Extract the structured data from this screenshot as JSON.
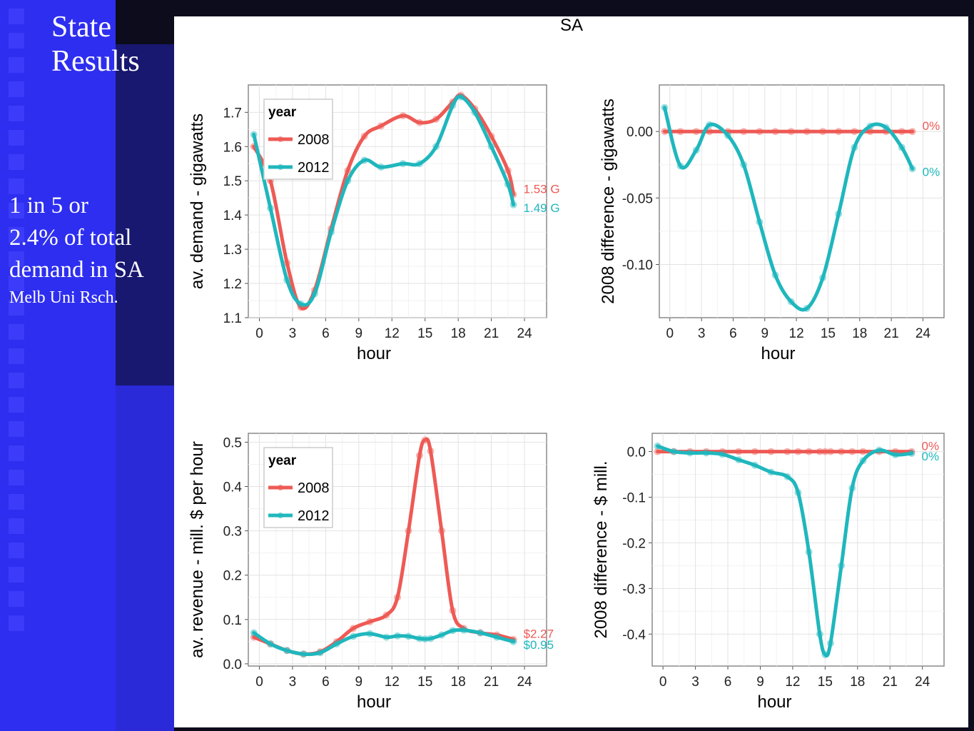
{
  "slide": {
    "title_lines": [
      "State",
      "Results"
    ],
    "note_lines": [
      "1 in 5 or",
      "2.4% of total",
      "demand in SA"
    ],
    "note_small": "Melb Uni Rsch."
  },
  "colors": {
    "y2008": "#ee5a55",
    "y2012": "#1fb7bd",
    "background_left": "#2e2ef0",
    "background_dark": "#0c0c1c"
  },
  "chart_title": "SA",
  "chart_data": [
    {
      "type": "scatter",
      "title": "SA",
      "xlabel": "hour",
      "ylabel": "av. demand - gigawatts",
      "xlim": [
        -1,
        26
      ],
      "ylim": [
        1.1,
        1.78
      ],
      "xticks": [
        "0",
        "3",
        "6",
        "9",
        "12",
        "15",
        "18",
        "21",
        "24"
      ],
      "yticks": [
        "1.1",
        "1.2",
        "1.3",
        "1.4",
        "1.5",
        "1.6",
        "1.7"
      ],
      "legend": {
        "title": "year",
        "position": "top-left",
        "entries": [
          "2008",
          "2012"
        ]
      },
      "x": [
        -0.5,
        1,
        2.5,
        3.75,
        5,
        6.5,
        8,
        9.5,
        11,
        13,
        14.5,
        16,
        17.5,
        18.25,
        19.5,
        21,
        22.5,
        23
      ],
      "series": [
        {
          "name": "2008",
          "values": [
            1.6,
            1.5,
            1.26,
            1.13,
            1.18,
            1.36,
            1.53,
            1.63,
            1.66,
            1.69,
            1.67,
            1.68,
            1.73,
            1.75,
            1.71,
            1.63,
            1.53,
            1.46
          ]
        },
        {
          "name": "2012",
          "values": [
            1.635,
            1.42,
            1.21,
            1.14,
            1.17,
            1.35,
            1.5,
            1.56,
            1.54,
            1.55,
            1.55,
            1.6,
            1.72,
            1.745,
            1.7,
            1.6,
            1.49,
            1.43
          ]
        }
      ],
      "end_labels": [
        "1.53 G",
        "1.49 G"
      ]
    },
    {
      "type": "scatter",
      "xlabel": "hour",
      "ylabel": "2008 difference - gigawatts",
      "xlim": [
        -1,
        26
      ],
      "ylim": [
        -0.14,
        0.035
      ],
      "xticks": [
        "0",
        "3",
        "6",
        "9",
        "12",
        "15",
        "18",
        "21",
        "24"
      ],
      "yticks": [
        "0.00",
        "-0.05",
        "-0.10"
      ],
      "x": [
        -0.5,
        1,
        2.5,
        3.75,
        5.5,
        7,
        8.5,
        10,
        11.5,
        13,
        14.5,
        16,
        17.5,
        19,
        20.5,
        22,
        23
      ],
      "series": [
        {
          "name": "2008",
          "values": [
            0,
            0,
            0,
            0,
            0,
            0,
            0,
            0,
            0,
            0,
            0,
            0,
            0,
            0,
            0,
            0,
            0
          ]
        },
        {
          "name": "2012",
          "values": [
            0.018,
            -0.026,
            -0.014,
            0.005,
            -0.003,
            -0.025,
            -0.068,
            -0.108,
            -0.128,
            -0.133,
            -0.11,
            -0.062,
            -0.012,
            0.004,
            0.003,
            -0.012,
            -0.028
          ]
        }
      ],
      "end_labels": [
        "0%",
        "0%"
      ]
    },
    {
      "type": "scatter",
      "xlabel": "hour",
      "ylabel": "av. revenue - mill. $ per hour",
      "xlim": [
        -1,
        26
      ],
      "ylim": [
        -0.005,
        0.52
      ],
      "xticks": [
        "0",
        "3",
        "6",
        "9",
        "12",
        "15",
        "18",
        "21",
        "24"
      ],
      "yticks": [
        "0.0",
        "0.1",
        "0.2",
        "0.3",
        "0.4",
        "0.5"
      ],
      "legend": {
        "title": "year",
        "position": "top-left",
        "entries": [
          "2008",
          "2012"
        ]
      },
      "x": [
        -0.5,
        1,
        2.5,
        4,
        5.5,
        7,
        8.5,
        10,
        11.5,
        12.5,
        13.5,
        14.5,
        15,
        15.5,
        16.5,
        17.5,
        18.5,
        20,
        21.5,
        23
      ],
      "series": [
        {
          "name": "2008",
          "values": [
            0.06,
            0.045,
            0.03,
            0.022,
            0.027,
            0.05,
            0.08,
            0.095,
            0.11,
            0.15,
            0.3,
            0.47,
            0.505,
            0.48,
            0.3,
            0.12,
            0.08,
            0.07,
            0.065,
            0.055
          ]
        },
        {
          "name": "2012",
          "values": [
            0.07,
            0.045,
            0.03,
            0.022,
            0.025,
            0.045,
            0.062,
            0.068,
            0.06,
            0.063,
            0.062,
            0.057,
            0.056,
            0.057,
            0.065,
            0.075,
            0.076,
            0.07,
            0.06,
            0.05
          ]
        }
      ],
      "end_labels": [
        "$2.27",
        "$0.95"
      ]
    },
    {
      "type": "scatter",
      "xlabel": "hour",
      "ylabel": "2008 difference - $ mill.",
      "xlim": [
        -1,
        26
      ],
      "ylim": [
        -0.47,
        0.04
      ],
      "xticks": [
        "0",
        "3",
        "6",
        "9",
        "12",
        "15",
        "18",
        "21",
        "24"
      ],
      "yticks": [
        "0.0",
        "-0.1",
        "-0.2",
        "-0.3",
        "-0.4"
      ],
      "x": [
        -0.5,
        1,
        2.5,
        4,
        5.5,
        7,
        8.5,
        10,
        11.5,
        12.5,
        13.5,
        14.5,
        15,
        15.5,
        16.5,
        17.5,
        18.5,
        20,
        21.5,
        23
      ],
      "series": [
        {
          "name": "2008",
          "values": [
            0,
            0,
            0,
            0,
            0,
            0,
            0,
            0,
            0,
            0,
            0,
            0,
            0,
            0,
            0,
            0,
            0,
            0,
            0,
            0
          ]
        },
        {
          "name": "2012",
          "values": [
            0.012,
            0.0,
            -0.003,
            -0.003,
            -0.006,
            -0.018,
            -0.03,
            -0.045,
            -0.055,
            -0.09,
            -0.22,
            -0.4,
            -0.445,
            -0.42,
            -0.25,
            -0.08,
            -0.02,
            0.003,
            -0.007,
            -0.004
          ]
        }
      ],
      "end_labels": [
        "0%",
        "0%"
      ]
    }
  ]
}
